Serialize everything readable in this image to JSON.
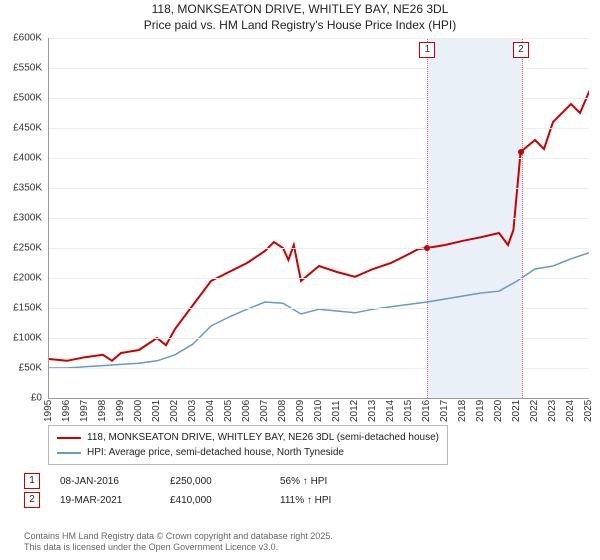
{
  "title_line1": "118, MONKSEATON DRIVE, WHITLEY BAY, NE26 3DL",
  "title_line2": "Price paid vs. HM Land Registry's House Price Index (HPI)",
  "chart": {
    "type": "line",
    "background_color": "#ffffff",
    "grid_color": "#eeeeee",
    "axis_color": "#999999",
    "ylim": [
      0,
      600000
    ],
    "ytick_step": 50000,
    "yticks": [
      "£0",
      "£50K",
      "£100K",
      "£150K",
      "£200K",
      "£250K",
      "£300K",
      "£350K",
      "£400K",
      "£450K",
      "£500K",
      "£550K",
      "£600K"
    ],
    "x_years": [
      1995,
      1996,
      1997,
      1998,
      1999,
      2000,
      2001,
      2002,
      2003,
      2004,
      2005,
      2006,
      2007,
      2008,
      2009,
      2010,
      2011,
      2012,
      2013,
      2014,
      2015,
      2016,
      2017,
      2018,
      2019,
      2020,
      2021,
      2022,
      2023,
      2024,
      2025
    ],
    "series": [
      {
        "name": "118, MONKSEATON DRIVE, WHITLEY BAY, NE26 3DL (semi-detached house)",
        "color": "#cc0000",
        "line_width": 2,
        "data": [
          [
            1995,
            65000
          ],
          [
            1996,
            62000
          ],
          [
            1997,
            68000
          ],
          [
            1998,
            72000
          ],
          [
            1998.5,
            62000
          ],
          [
            1999,
            75000
          ],
          [
            2000,
            80000
          ],
          [
            2001,
            100000
          ],
          [
            2001.5,
            88000
          ],
          [
            2002,
            115000
          ],
          [
            2003,
            155000
          ],
          [
            2004,
            195000
          ],
          [
            2005,
            210000
          ],
          [
            2006,
            225000
          ],
          [
            2007,
            245000
          ],
          [
            2007.5,
            260000
          ],
          [
            2008,
            250000
          ],
          [
            2008.3,
            230000
          ],
          [
            2008.6,
            255000
          ],
          [
            2009,
            195000
          ],
          [
            2010,
            220000
          ],
          [
            2011,
            210000
          ],
          [
            2012,
            202000
          ],
          [
            2013,
            215000
          ],
          [
            2014,
            225000
          ],
          [
            2015,
            240000
          ],
          [
            2015.5,
            248000
          ],
          [
            2016,
            250000
          ],
          [
            2017,
            255000
          ],
          [
            2018,
            262000
          ],
          [
            2019,
            268000
          ],
          [
            2020,
            275000
          ],
          [
            2020.5,
            255000
          ],
          [
            2020.8,
            280000
          ],
          [
            2021.2,
            410000
          ],
          [
            2022,
            430000
          ],
          [
            2022.5,
            415000
          ],
          [
            2023,
            460000
          ],
          [
            2024,
            490000
          ],
          [
            2024.5,
            475000
          ],
          [
            2025,
            510000
          ],
          [
            2025.3,
            500000
          ]
        ]
      },
      {
        "name": "HPI: Average price, semi-detached house, North Tyneside",
        "color": "#6699cc",
        "line_width": 1.5,
        "data": [
          [
            1995,
            50000
          ],
          [
            1996,
            50000
          ],
          [
            1997,
            52000
          ],
          [
            1998,
            54000
          ],
          [
            1999,
            56000
          ],
          [
            2000,
            58000
          ],
          [
            2001,
            62000
          ],
          [
            2002,
            72000
          ],
          [
            2003,
            90000
          ],
          [
            2004,
            120000
          ],
          [
            2005,
            135000
          ],
          [
            2006,
            148000
          ],
          [
            2007,
            160000
          ],
          [
            2008,
            158000
          ],
          [
            2009,
            140000
          ],
          [
            2010,
            148000
          ],
          [
            2011,
            145000
          ],
          [
            2012,
            142000
          ],
          [
            2013,
            148000
          ],
          [
            2014,
            152000
          ],
          [
            2015,
            156000
          ],
          [
            2016,
            160000
          ],
          [
            2017,
            165000
          ],
          [
            2018,
            170000
          ],
          [
            2019,
            175000
          ],
          [
            2020,
            178000
          ],
          [
            2021,
            195000
          ],
          [
            2022,
            215000
          ],
          [
            2023,
            220000
          ],
          [
            2024,
            232000
          ],
          [
            2025,
            242000
          ]
        ]
      }
    ],
    "sale_markers": [
      {
        "label": "1",
        "year": 2016.02,
        "price": 250000,
        "dot_color": "#cc0000"
      },
      {
        "label": "2",
        "year": 2021.22,
        "price": 410000,
        "dot_color": "#cc0000"
      }
    ],
    "highlight_band": {
      "start_year": 2016.02,
      "end_year": 2021.22,
      "fill": "rgba(180,200,230,0.28)"
    }
  },
  "legend": {
    "items": [
      {
        "color": "#cc0000",
        "label": "118, MONKSEATON DRIVE, WHITLEY BAY, NE26 3DL (semi-detached house)"
      },
      {
        "color": "#6699cc",
        "label": "HPI: Average price, semi-detached house, North Tyneside"
      }
    ]
  },
  "events": [
    {
      "num": "1",
      "date": "08-JAN-2016",
      "price": "£250,000",
      "pct": "56% ↑ HPI"
    },
    {
      "num": "2",
      "date": "19-MAR-2021",
      "price": "£410,000",
      "pct": "111% ↑ HPI"
    }
  ],
  "footer_line1": "Contains HM Land Registry data © Crown copyright and database right 2025.",
  "footer_line2": "This data is licensed under the Open Government Licence v3.0."
}
